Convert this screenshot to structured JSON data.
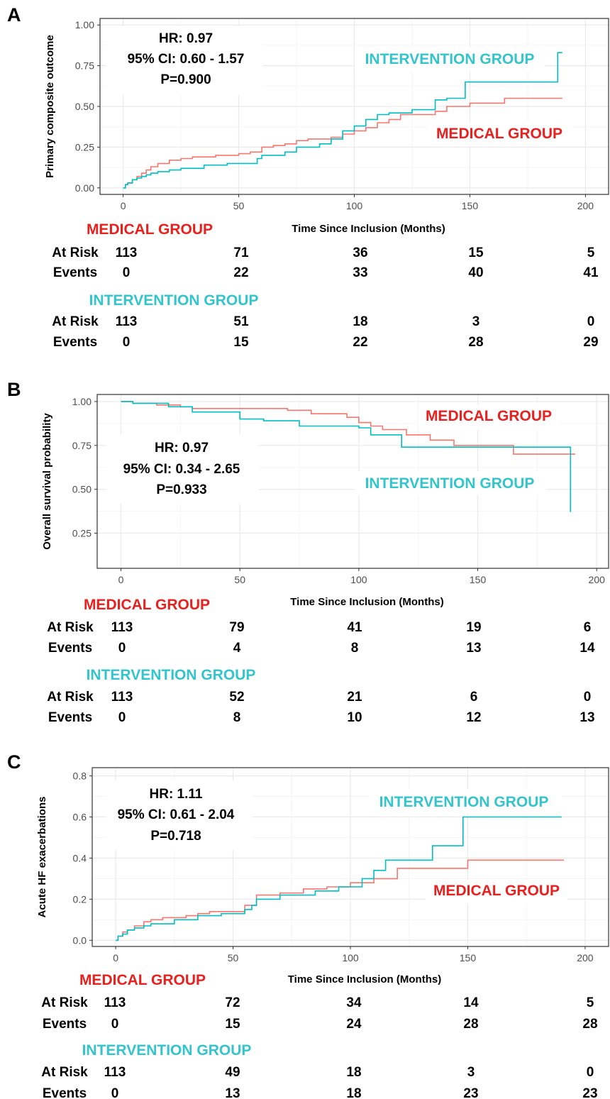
{
  "colors": {
    "medical": "#F8766D",
    "intervention": "#00BFC4",
    "medical_label": "#E8201E",
    "intervention_label": "#33C4CC",
    "grid_major": "#EBEBEB",
    "grid_minor": "#F5F5F5",
    "axis_text": "#4D4D4D",
    "panel_border": "#333333"
  },
  "chart_data": [
    {
      "type": "line",
      "panel_letter": "A",
      "ylabel": "Primary composite outcome",
      "xlabel": "Time Since Inclusion (Months)",
      "xlim": [
        -10,
        210
      ],
      "ylim": [
        -0.04,
        1.04
      ],
      "x_ticks": [
        0,
        50,
        100,
        150,
        200
      ],
      "y_ticks": [
        0,
        0.25,
        0.5,
        0.75,
        1.0
      ],
      "y_tick_labels": [
        "0.00",
        "0.25",
        "0.50",
        "0.75",
        "1.00"
      ],
      "stats": [
        "HR: 0.97",
        "95% CI: 0.60 - 1.57",
        "P=0.900"
      ],
      "labels": {
        "intervention": "INTERVENTION GROUP",
        "medical": "MEDICAL GROUP"
      },
      "series": [
        {
          "name": "MEDICAL GROUP",
          "group": "medical",
          "x": [
            0,
            1,
            2,
            4,
            6,
            8,
            10,
            12,
            15,
            20,
            25,
            30,
            40,
            50,
            55,
            60,
            65,
            70,
            75,
            80,
            90,
            95,
            100,
            105,
            110,
            115,
            120,
            135,
            140,
            150,
            165,
            190
          ],
          "y": [
            0,
            0.02,
            0.03,
            0.05,
            0.07,
            0.09,
            0.11,
            0.13,
            0.15,
            0.17,
            0.18,
            0.19,
            0.2,
            0.21,
            0.22,
            0.25,
            0.26,
            0.27,
            0.29,
            0.3,
            0.31,
            0.33,
            0.35,
            0.37,
            0.4,
            0.42,
            0.45,
            0.47,
            0.5,
            0.52,
            0.55,
            0.55
          ]
        },
        {
          "name": "INTERVENTION GROUP",
          "group": "intervention",
          "x": [
            0,
            1,
            2,
            4,
            6,
            8,
            10,
            12,
            15,
            20,
            25,
            35,
            45,
            55,
            58,
            60,
            70,
            75,
            85,
            90,
            95,
            100,
            105,
            110,
            115,
            125,
            135,
            140,
            148,
            155,
            188,
            190
          ],
          "y": [
            0,
            0.02,
            0.03,
            0.05,
            0.06,
            0.07,
            0.08,
            0.09,
            0.1,
            0.11,
            0.12,
            0.14,
            0.15,
            0.15,
            0.18,
            0.2,
            0.22,
            0.25,
            0.27,
            0.3,
            0.35,
            0.38,
            0.42,
            0.45,
            0.46,
            0.48,
            0.54,
            0.55,
            0.65,
            0.65,
            0.83,
            0.83
          ]
        }
      ],
      "risk_table": [
        {
          "title": "MEDICAL GROUP",
          "group": "medical",
          "rows": [
            {
              "label": "At Risk",
              "values": [
                "113",
                "71",
                "36",
                "15",
                "5"
              ]
            },
            {
              "label": "Events",
              "values": [
                "0",
                "22",
                "33",
                "40",
                "41"
              ]
            }
          ]
        },
        {
          "title": "INTERVENTION GROUP",
          "group": "intervention",
          "rows": [
            {
              "label": "At Risk",
              "values": [
                "113",
                "51",
                "18",
                "3",
                "0"
              ]
            },
            {
              "label": "Events",
              "values": [
                "0",
                "15",
                "22",
                "28",
                "29"
              ]
            }
          ]
        }
      ]
    },
    {
      "type": "line",
      "panel_letter": "B",
      "ylabel": "Overall survival probability",
      "xlabel": "Time Since Inclusion (Months)",
      "xlim": [
        -10,
        205
      ],
      "ylim": [
        0.05,
        1.04
      ],
      "x_ticks": [
        0,
        50,
        100,
        150,
        200
      ],
      "y_ticks": [
        0.25,
        0.5,
        0.75,
        1.0
      ],
      "y_tick_labels": [
        "0.25",
        "0.50",
        "0.75",
        "1.00"
      ],
      "stats": [
        "HR: 0.97",
        "95% CI: 0.34 - 2.65",
        "P=0.933"
      ],
      "labels": {
        "intervention": "INTERVENTION GROUP",
        "medical": "MEDICAL GROUP"
      },
      "series": [
        {
          "name": "MEDICAL GROUP",
          "group": "medical",
          "x": [
            0,
            5,
            15,
            25,
            30,
            60,
            70,
            80,
            95,
            100,
            105,
            110,
            120,
            130,
            140,
            165,
            191
          ],
          "y": [
            1.0,
            0.99,
            0.98,
            0.97,
            0.96,
            0.96,
            0.95,
            0.93,
            0.91,
            0.88,
            0.86,
            0.84,
            0.81,
            0.78,
            0.75,
            0.7,
            0.7
          ]
        },
        {
          "name": "INTERVENTION GROUP",
          "group": "intervention",
          "x": [
            0,
            5,
            20,
            30,
            50,
            60,
            75,
            100,
            105,
            118,
            140,
            188,
            189
          ],
          "y": [
            1.0,
            0.99,
            0.97,
            0.94,
            0.9,
            0.89,
            0.86,
            0.85,
            0.81,
            0.74,
            0.74,
            0.74,
            0.37
          ]
        }
      ],
      "risk_table": [
        {
          "title": "MEDICAL GROUP",
          "group": "medical",
          "rows": [
            {
              "label": "At Risk",
              "values": [
                "113",
                "79",
                "41",
                "19",
                "6"
              ]
            },
            {
              "label": "Events",
              "values": [
                "0",
                "4",
                "8",
                "13",
                "14"
              ]
            }
          ]
        },
        {
          "title": "INTERVENTION GROUP",
          "group": "intervention",
          "rows": [
            {
              "label": "At Risk",
              "values": [
                "113",
                "52",
                "21",
                "6",
                "0"
              ]
            },
            {
              "label": "Events",
              "values": [
                "0",
                "8",
                "10",
                "12",
                "13"
              ]
            }
          ]
        }
      ]
    },
    {
      "type": "line",
      "panel_letter": "C",
      "ylabel": "Acute HF exacerbations",
      "xlabel": "Time Since Inclusion (Months)",
      "xlim": [
        -10,
        210
      ],
      "ylim": [
        -0.03,
        0.84
      ],
      "x_ticks": [
        0,
        50,
        100,
        150,
        200
      ],
      "y_ticks": [
        0,
        0.2,
        0.4,
        0.6,
        0.8
      ],
      "y_tick_labels": [
        "0.0",
        "0.2",
        "0.4",
        "0.6",
        "0.8"
      ],
      "stats": [
        "HR: 1.11",
        "95% CI: 0.61 - 2.04",
        "P=0.718"
      ],
      "labels": {
        "intervention": "INTERVENTION GROUP",
        "medical": "MEDICAL GROUP"
      },
      "series": [
        {
          "name": "MEDICAL GROUP",
          "group": "medical",
          "x": [
            0,
            1,
            3,
            5,
            8,
            12,
            15,
            20,
            30,
            35,
            40,
            55,
            60,
            70,
            80,
            90,
            100,
            110,
            120,
            135,
            150,
            191
          ],
          "y": [
            0,
            0.02,
            0.04,
            0.05,
            0.07,
            0.09,
            0.1,
            0.11,
            0.12,
            0.13,
            0.14,
            0.17,
            0.22,
            0.23,
            0.25,
            0.26,
            0.28,
            0.3,
            0.35,
            0.35,
            0.39,
            0.39
          ]
        },
        {
          "name": "INTERVENTION GROUP",
          "group": "intervention",
          "x": [
            0,
            1,
            3,
            5,
            8,
            12,
            15,
            25,
            35,
            45,
            55,
            58,
            60,
            70,
            85,
            95,
            105,
            110,
            115,
            135,
            140,
            148,
            190
          ],
          "y": [
            0,
            0.02,
            0.03,
            0.05,
            0.06,
            0.07,
            0.08,
            0.1,
            0.12,
            0.13,
            0.15,
            0.17,
            0.2,
            0.22,
            0.24,
            0.26,
            0.3,
            0.34,
            0.39,
            0.46,
            0.46,
            0.6,
            0.6
          ]
        }
      ],
      "risk_table": [
        {
          "title": "MEDICAL GROUP",
          "group": "medical",
          "rows": [
            {
              "label": "At Risk",
              "values": [
                "113",
                "72",
                "34",
                "14",
                "5"
              ]
            },
            {
              "label": "Events",
              "values": [
                "0",
                "15",
                "24",
                "28",
                "28"
              ]
            }
          ]
        },
        {
          "title": "INTERVENTION GROUP",
          "group": "intervention",
          "rows": [
            {
              "label": "At Risk",
              "values": [
                "113",
                "49",
                "18",
                "3",
                "0"
              ]
            },
            {
              "label": "Events",
              "values": [
                "0",
                "13",
                "18",
                "23",
                "23"
              ]
            }
          ]
        }
      ]
    }
  ]
}
